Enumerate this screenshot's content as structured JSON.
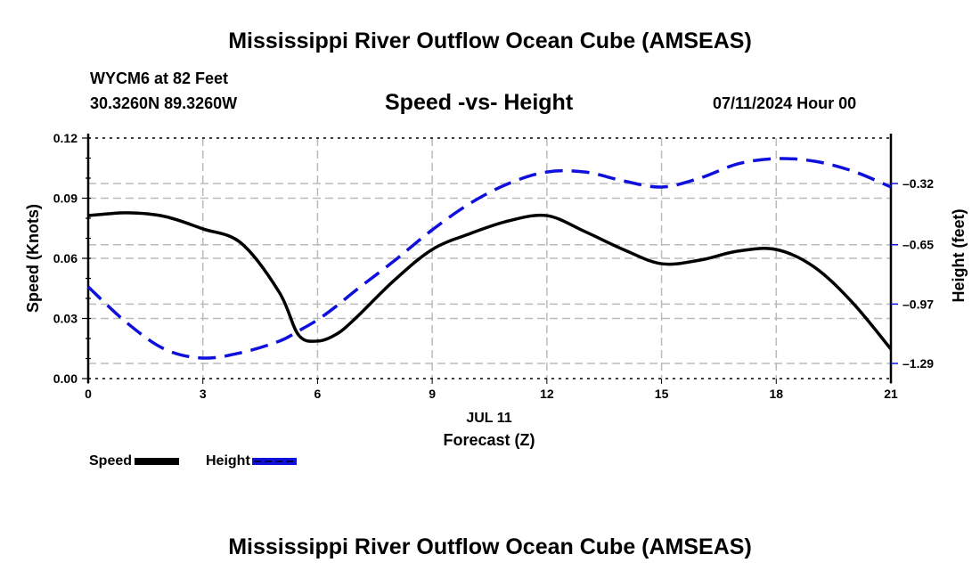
{
  "header": {
    "title": "Mississippi River Outflow Ocean Cube (AMSEAS)",
    "station_line": "WYCM6 at 82 Feet",
    "coords_line": "30.3260N  89.3260W",
    "chart_title": "Speed -vs- Height",
    "datetime": "07/11/2024 Hour 00"
  },
  "footer": {
    "title": "Mississippi River Outflow Ocean Cube (AMSEAS)"
  },
  "legend": {
    "speed_label": "Speed",
    "height_label": "Height"
  },
  "chart_data": {
    "type": "line",
    "title": "Speed -vs- Height",
    "xlabel": "Forecast (Z)",
    "xdate_label": "JUL 11",
    "ylabel": "Speed (Knots)",
    "y2label": "Height (feet)",
    "xlim": [
      0,
      21
    ],
    "ylim": [
      0,
      0.12
    ],
    "y2lim": [
      -1.29,
      -0.32
    ],
    "x_ticks": [
      0,
      3,
      6,
      9,
      12,
      15,
      18,
      21
    ],
    "x_tick_labels": [
      "0",
      "3",
      "6",
      "9",
      "12",
      "15",
      "18",
      "21"
    ],
    "y_ticks": [
      0.0,
      0.03,
      0.06,
      0.09,
      0.12
    ],
    "y_tick_labels": [
      "0.00",
      "0.03",
      "0.06",
      "0.09",
      "0.12"
    ],
    "y2_ticks": [
      -0.32,
      -0.65,
      -0.97,
      -1.29
    ],
    "y2_tick_labels": [
      "-0.32",
      "-0.65",
      "-0.97",
      "-1.29"
    ],
    "grid": true,
    "legend_position": "bottom-left",
    "x": [
      0,
      1,
      2,
      3,
      4,
      5,
      5.5,
      6,
      6.5,
      7,
      8,
      9,
      10,
      11,
      12,
      13,
      14,
      15,
      16,
      17,
      18,
      19,
      20,
      21
    ],
    "series": [
      {
        "name": "Speed",
        "axis": "left",
        "color": "#000000",
        "style": "solid",
        "values": [
          0.0813,
          0.0827,
          0.0809,
          0.0747,
          0.0676,
          0.043,
          0.0218,
          0.0187,
          0.0222,
          0.0302,
          0.0489,
          0.0644,
          0.0724,
          0.0787,
          0.0813,
          0.0733,
          0.0644,
          0.0573,
          0.0591,
          0.0636,
          0.0644,
          0.0556,
          0.0378,
          0.0147
        ]
      },
      {
        "name": "Height",
        "axis": "right",
        "color": "#1010dd",
        "style": "dashed",
        "values": [
          -0.877,
          -1.069,
          -1.213,
          -1.261,
          -1.232,
          -1.17,
          -1.115,
          -1.055,
          -0.98,
          -0.896,
          -0.738,
          -0.57,
          -0.426,
          -0.32,
          -0.258,
          -0.258,
          -0.306,
          -0.339,
          -0.291,
          -0.214,
          -0.186,
          -0.2,
          -0.253,
          -0.339
        ]
      }
    ]
  }
}
